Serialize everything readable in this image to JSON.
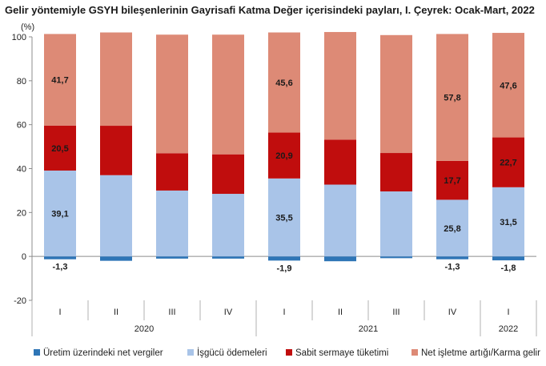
{
  "title": "Gelir yöntemiyle GSYH bileşenlerinin Gayrisafi Katma Değer içerisindeki payları, I. Çeyrek: Ocak-Mart, 2022",
  "chart_data": {
    "type": "bar",
    "stacked": true,
    "unit_label": "(%)",
    "ylim": [
      -20,
      100
    ],
    "yticks": [
      -20,
      0,
      20,
      40,
      60,
      80,
      100
    ],
    "categories": [
      "I",
      "II",
      "III",
      "IV",
      "I",
      "II",
      "III",
      "IV",
      "I"
    ],
    "year_groups": [
      {
        "label": "2020",
        "count": 4
      },
      {
        "label": "2021",
        "count": 4
      },
      {
        "label": "2022",
        "count": 1
      }
    ],
    "series": [
      {
        "name": "Üretim üzerindeki net vergiler",
        "color": "#2e75b6",
        "values": [
          -1.3,
          -2.0,
          -1.0,
          -1.0,
          -1.9,
          -2.2,
          -0.8,
          -1.3,
          -1.8
        ],
        "labels": [
          "-1,3",
          "",
          "",
          "",
          "-1,9",
          "",
          "",
          "-1,3",
          "-1,8"
        ]
      },
      {
        "name": "İşgücü ödemeleri",
        "color": "#a9c4e8",
        "values": [
          39.1,
          37.0,
          30.0,
          28.5,
          35.5,
          32.7,
          29.6,
          25.8,
          31.5
        ],
        "labels": [
          "39,1",
          "",
          "",
          "",
          "35,5",
          "",
          "",
          "25,8",
          "31,5"
        ]
      },
      {
        "name": "Sabit sermaye tüketimi",
        "color": "#c00d0d",
        "values": [
          20.5,
          22.5,
          17.0,
          18.0,
          20.9,
          20.5,
          17.5,
          17.7,
          22.7
        ],
        "labels": [
          "20,5",
          "",
          "",
          "",
          "20,9",
          "",
          "",
          "17,7",
          "22,7"
        ]
      },
      {
        "name": "Net işletme artığı/Karma gelir",
        "color": "#dd8a76",
        "values": [
          41.7,
          42.5,
          54.0,
          54.5,
          45.6,
          49.0,
          53.7,
          57.8,
          47.6
        ],
        "labels": [
          "41,7",
          "",
          "",
          "",
          "45,6",
          "",
          "",
          "57,8",
          "47,6"
        ]
      }
    ],
    "grid": false,
    "legend_position": "bottom"
  }
}
